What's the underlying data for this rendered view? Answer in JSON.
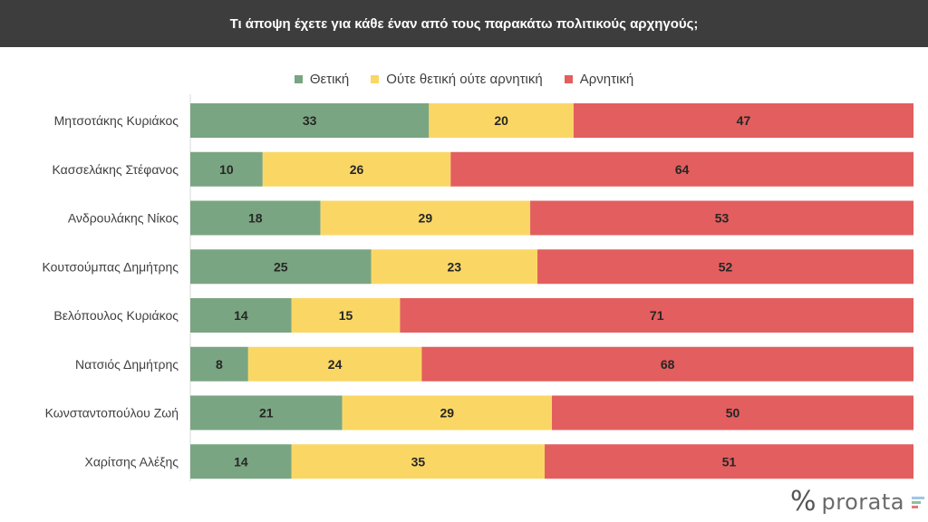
{
  "title": "Τι άποψη έχετε για κάθε έναν από τους παρακάτω πολιτικούς αρχηγούς;",
  "logo": {
    "text": "prorata",
    "mark": "%"
  },
  "colors": {
    "positive": "#7aa582",
    "neutral": "#fad765",
    "negative": "#e35e5e",
    "title_bar": "#3d3d3d",
    "logo_bar_1": "#9fc7e6",
    "logo_bar_2": "#8fc29a",
    "logo_bar_3": "#e07a7a"
  },
  "chart_data": {
    "type": "bar",
    "orientation": "horizontal",
    "stacked": true,
    "title": "Τι άποψη έχετε για κάθε έναν από τους παρακάτω πολιτικούς αρχηγούς;",
    "legend_position": "top",
    "grid": false,
    "xlim": [
      0,
      100
    ],
    "categories": [
      "Μητσοτάκης Κυριάκος",
      "Κασσελάκης Στέφανος",
      "Ανδρουλάκης Νίκος",
      "Κουτσούμπας Δημήτρης",
      "Βελόπουλος Κυριάκος",
      "Νατσιός Δημήτρης",
      "Κωνσταντοπούλου Ζωή",
      "Χαρίτσης Αλέξης"
    ],
    "series": [
      {
        "name": "Θετική",
        "color": "#7aa582",
        "values": [
          33,
          10,
          18,
          25,
          14,
          8,
          21,
          14
        ]
      },
      {
        "name": "Ούτε θετική ούτε αρνητική",
        "color": "#fad765",
        "values": [
          20,
          26,
          29,
          23,
          15,
          24,
          29,
          35
        ]
      },
      {
        "name": "Αρνητική",
        "color": "#e35e5e",
        "values": [
          47,
          64,
          53,
          52,
          71,
          68,
          50,
          51
        ]
      }
    ]
  }
}
